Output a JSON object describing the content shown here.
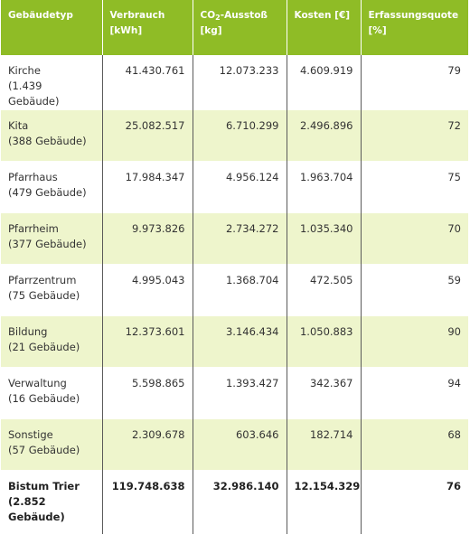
{
  "headers": [
    {
      "line1": "Gebäudetyp",
      "line2": ""
    },
    {
      "line1": "Verbrauch",
      "line2": "[kWh]"
    },
    {
      "line1_pre": "CO",
      "line1_sub": "2",
      "line1_post": "-Ausstoß",
      "line2": "[kg]"
    },
    {
      "line1": "Kosten [€]",
      "line2": ""
    },
    {
      "line1": "Erfassungsquote",
      "line2": "[%]"
    }
  ],
  "rows": [
    {
      "name": "Kirche",
      "count": "(1.439 Gebäude)",
      "verbrauch": "41.430.761",
      "co2": "12.073.233",
      "kosten": "4.609.919",
      "quote": "79"
    },
    {
      "name": "Kita",
      "count": "(388 Gebäude)",
      "verbrauch": "25.082.517",
      "co2": "6.710.299",
      "kosten": "2.496.896",
      "quote": "72"
    },
    {
      "name": "Pfarrhaus",
      "count": "(479 Gebäude)",
      "verbrauch": "17.984.347",
      "co2": "4.956.124",
      "kosten": "1.963.704",
      "quote": "75"
    },
    {
      "name": "Pfarrheim",
      "count": "(377 Gebäude)",
      "verbrauch": "9.973.826",
      "co2": "2.734.272",
      "kosten": "1.035.340",
      "quote": "70"
    },
    {
      "name": "Pfarrzentrum",
      "count": "(75 Gebäude)",
      "verbrauch": "4.995.043",
      "co2": "1.368.704",
      "kosten": "472.505",
      "quote": "59"
    },
    {
      "name": "Bildung",
      "count": "(21 Gebäude)",
      "verbrauch": "12.373.601",
      "co2": "3.146.434",
      "kosten": "1.050.883",
      "quote": "90"
    },
    {
      "name": "Verwaltung",
      "count": "(16 Gebäude)",
      "verbrauch": "5.598.865",
      "co2": "1.393.427",
      "kosten": "342.367",
      "quote": "94"
    },
    {
      "name": "Sonstige",
      "count": "(57 Gebäude)",
      "verbrauch": "2.309.678",
      "co2": "603.646",
      "kosten": "182.714",
      "quote": "68"
    }
  ],
  "total": {
    "name_l1": "Bistum Trier",
    "name_l2": "(2.852",
    "name_l3": "Gebäude)",
    "verbrauch": "119.748.638",
    "co2": "32.986.140",
    "kosten": "12.154.329",
    "quote": "76"
  },
  "colors": {
    "header_bg": "#8fbc26",
    "stripe_bg": "#eef5cc"
  }
}
